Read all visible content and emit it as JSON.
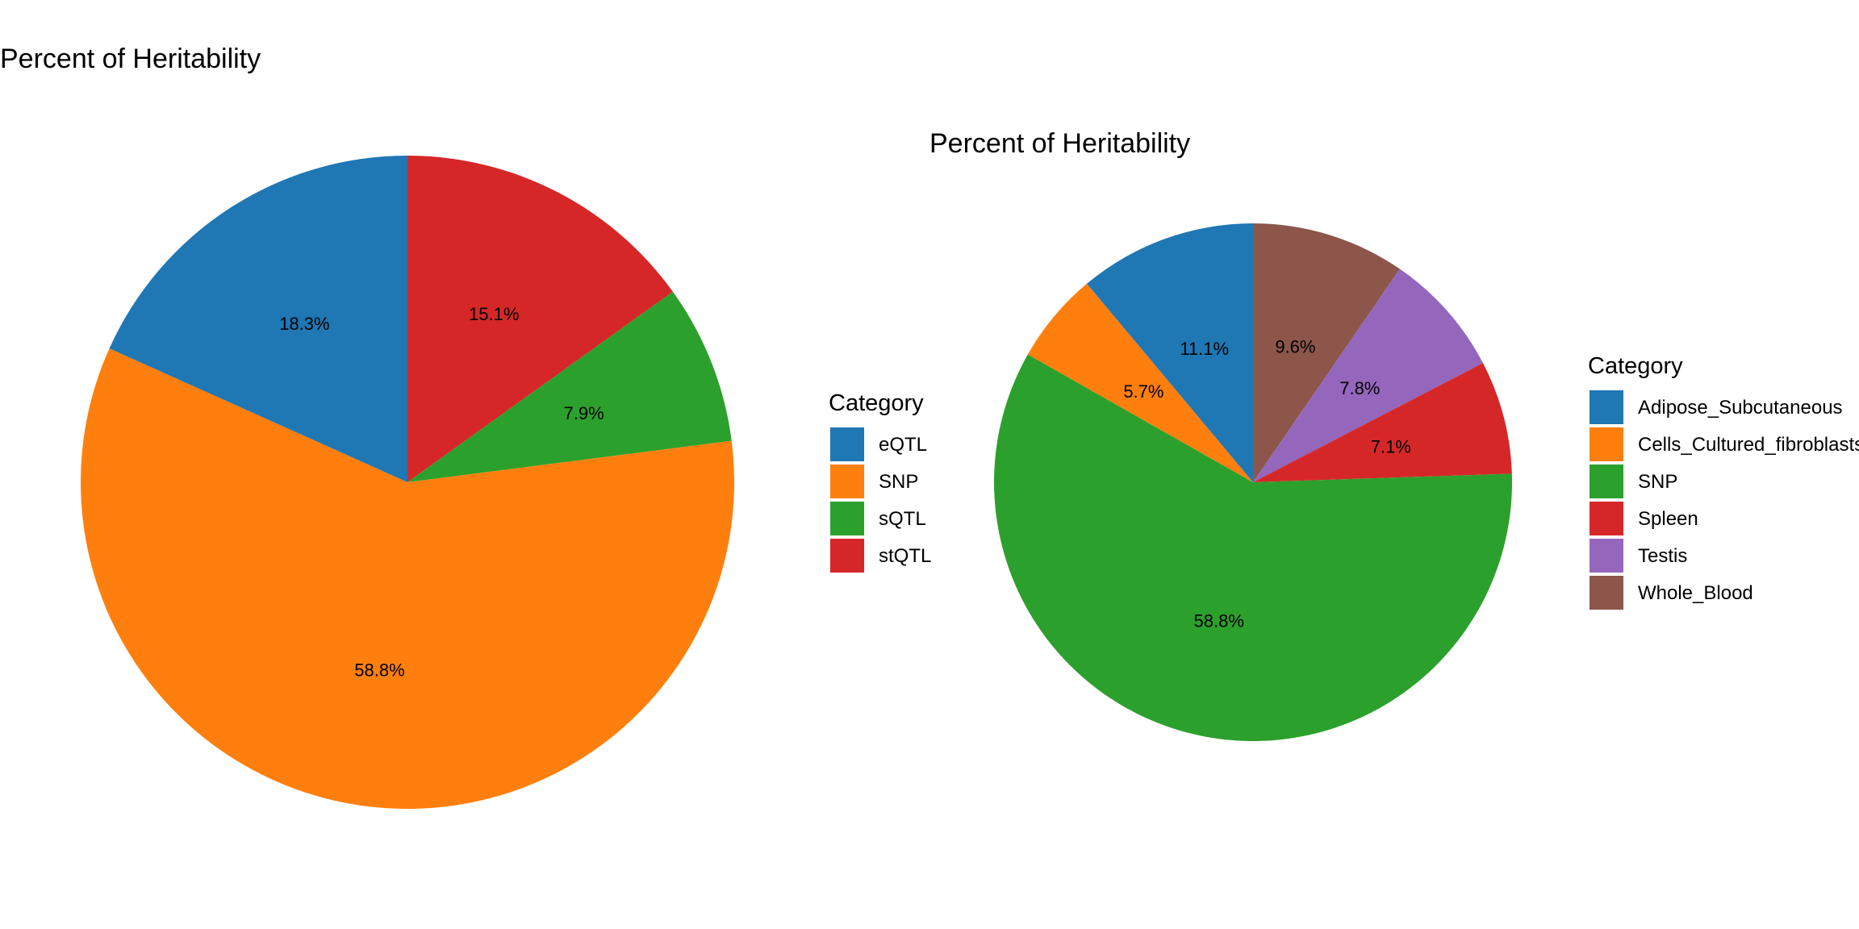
{
  "chart_data": [
    {
      "type": "pie",
      "title": "Percent of Heritability",
      "legend_title": "Category",
      "legend_position": "right",
      "categories": [
        "eQTL",
        "SNP",
        "sQTL",
        "stQTL"
      ],
      "values": [
        18.3,
        58.8,
        7.9,
        15.1
      ],
      "labels": [
        "18.3%",
        "58.8%",
        "7.9%",
        "15.1%"
      ],
      "colors": [
        "#1f77b4",
        "#ff7f0e",
        "#2ca02c",
        "#d62728"
      ],
      "slice_order": [
        "stQTL",
        "sQTL",
        "SNP",
        "eQTL"
      ],
      "direction": "clockwise",
      "start": "top"
    },
    {
      "type": "pie",
      "title": "Percent of Heritability",
      "legend_title": "Category",
      "legend_position": "right",
      "categories": [
        "Adipose_Subcutaneous",
        "Cells_Cultured_fibroblasts",
        "SNP",
        "Spleen",
        "Testis",
        "Whole_Blood"
      ],
      "values": [
        11.1,
        5.7,
        58.8,
        7.1,
        7.8,
        9.6
      ],
      "labels": [
        "11.1%",
        "5.7%",
        "58.8%",
        "7.1%",
        "7.8%",
        "9.6%"
      ],
      "colors": [
        "#1f77b4",
        "#ff7f0e",
        "#2ca02c",
        "#d62728",
        "#9467bd",
        "#8c564b"
      ],
      "slice_order": [
        "Whole_Blood",
        "Testis",
        "Spleen",
        "SNP",
        "Cells_Cultured_fibroblasts",
        "Adipose_Subcutaneous"
      ],
      "direction": "clockwise",
      "start": "top"
    }
  ]
}
